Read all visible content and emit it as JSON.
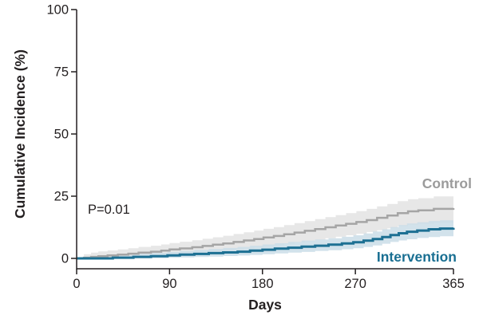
{
  "colors": {
    "text": "#231f20",
    "axis": "#231f20",
    "background": "#ffffff"
  },
  "chart_data": {
    "type": "line",
    "subtype": "step-cumulative-incidence",
    "title": "",
    "xlabel": "Days",
    "ylabel": "Cumulative Incidence (%)",
    "xlim": [
      0,
      365
    ],
    "ylim": [
      0,
      100
    ],
    "x_ticks": [
      0,
      90,
      180,
      270,
      365
    ],
    "y_ticks": [
      0,
      25,
      50,
      75,
      100
    ],
    "grid": false,
    "legend_position": "inline-right",
    "annotations": [
      {
        "text": "P=0.01",
        "x_day": 12,
        "y_pct": 18.5
      }
    ],
    "series": [
      {
        "name": "Control",
        "line_color": "#a5a5a5",
        "band_color": "#e7e7e7",
        "label_color": "#9b9b9b",
        "line_width": 2.5,
        "days": [
          0,
          7,
          14,
          21,
          30,
          40,
          50,
          60,
          72,
          82,
          90,
          100,
          112,
          122,
          132,
          142,
          152,
          162,
          172,
          181,
          191,
          201,
          211,
          221,
          231,
          241,
          251,
          261,
          271,
          281,
          291,
          301,
          311,
          321,
          331,
          346,
          365
        ],
        "values": [
          0,
          0.3,
          0.6,
          0.9,
          1.2,
          1.5,
          1.9,
          2.3,
          2.7,
          3.1,
          3.6,
          4.0,
          4.5,
          5.0,
          5.5,
          6.0,
          6.6,
          7.2,
          7.8,
          8.4,
          9.0,
          9.7,
          10.4,
          11.1,
          11.8,
          12.5,
          13.2,
          13.9,
          14.6,
          15.4,
          16.3,
          17.2,
          18.2,
          18.9,
          19.3,
          19.9,
          20.2
        ],
        "upper": [
          0.4,
          1.7,
          2.3,
          2.8,
          3.2,
          3.6,
          4.1,
          4.6,
          5.1,
          5.6,
          6.2,
          6.7,
          7.3,
          7.9,
          8.5,
          9.1,
          9.8,
          10.5,
          11.2,
          11.9,
          12.6,
          13.4,
          14.2,
          15.0,
          15.8,
          16.6,
          17.4,
          18.2,
          19.0,
          19.9,
          20.9,
          21.9,
          23.0,
          23.8,
          24.2,
          24.9,
          25.2
        ],
        "lower": [
          0,
          0,
          0.05,
          0.1,
          0.2,
          0.35,
          0.5,
          0.7,
          0.9,
          1.1,
          1.4,
          1.7,
          2.0,
          2.4,
          2.7,
          3.1,
          3.5,
          3.9,
          4.4,
          4.8,
          5.3,
          5.8,
          6.4,
          6.9,
          7.5,
          8.1,
          8.7,
          9.3,
          9.9,
          10.6,
          11.3,
          12.1,
          12.9,
          13.5,
          13.9,
          14.4,
          14.7
        ]
      },
      {
        "name": "Intervention",
        "line_color": "#1d7093",
        "band_color": "#cadde8",
        "label_color": "#196f92",
        "line_width": 3,
        "days": [
          0,
          35,
          55,
          72,
          88,
          100,
          114,
          128,
          142,
          156,
          168,
          180,
          192,
          205,
          218,
          231,
          244,
          257,
          268,
          278,
          287,
          296,
          304,
          312,
          320,
          330,
          341,
          352,
          365
        ],
        "values": [
          0,
          0.3,
          0.6,
          0.9,
          1.2,
          1.5,
          1.8,
          2.1,
          2.4,
          2.7,
          3.1,
          3.5,
          3.9,
          4.3,
          4.7,
          5.1,
          5.5,
          6.0,
          6.5,
          7.1,
          7.8,
          8.6,
          9.4,
          10.1,
          10.7,
          11.2,
          11.7,
          12.0,
          12.3
        ],
        "upper": [
          0.4,
          1.3,
          1.8,
          2.2,
          2.6,
          3.0,
          3.4,
          3.8,
          4.2,
          4.6,
          5.1,
          5.6,
          6.1,
          6.6,
          7.1,
          7.6,
          8.1,
          8.7,
          9.3,
          10.0,
          10.8,
          11.7,
          12.6,
          13.4,
          14.0,
          14.5,
          15.0,
          15.3,
          15.6
        ],
        "lower": [
          0,
          0,
          0.05,
          0.1,
          0.25,
          0.4,
          0.55,
          0.75,
          0.95,
          1.15,
          1.4,
          1.7,
          2.0,
          2.3,
          2.6,
          3.0,
          3.3,
          3.7,
          4.1,
          4.6,
          5.2,
          5.9,
          6.6,
          7.2,
          7.7,
          8.2,
          8.6,
          8.9,
          9.2
        ]
      }
    ]
  }
}
